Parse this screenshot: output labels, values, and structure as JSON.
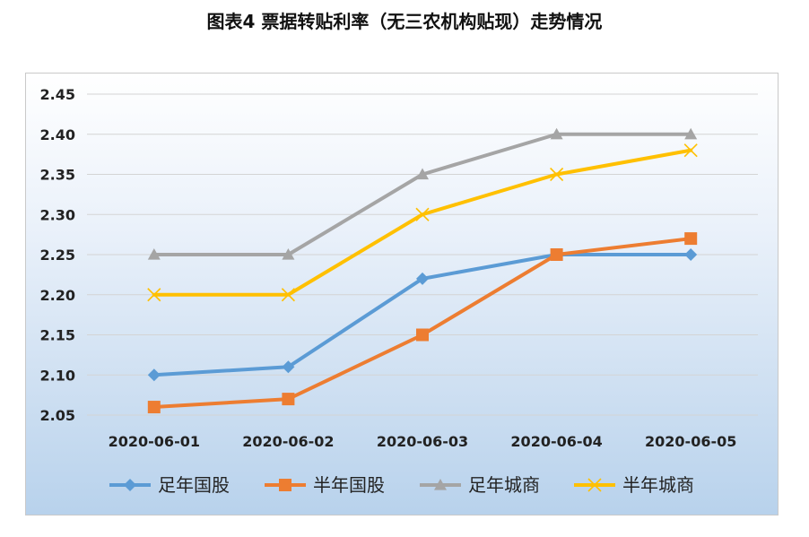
{
  "title": "图表4  票据转贴利率（无三农机构贴现）走势情况",
  "chart_data": {
    "type": "line",
    "title": "图表4  票据转贴利率（无三农机构贴现）走势情况",
    "categories": [
      "2020-06-01",
      "2020-06-02",
      "2020-06-03",
      "2020-06-04",
      "2020-06-05"
    ],
    "ylim": [
      2.05,
      2.45
    ],
    "yticks": [
      "2.05",
      "2.10",
      "2.15",
      "2.20",
      "2.25",
      "2.30",
      "2.35",
      "2.40",
      "2.45"
    ],
    "grid": true,
    "legend_position": "bottom",
    "series": [
      {
        "name": "足年国股",
        "values": [
          2.1,
          2.11,
          2.22,
          2.25,
          2.25
        ],
        "color": "#5b9bd5",
        "marker": "diamond"
      },
      {
        "name": "半年国股",
        "values": [
          2.06,
          2.07,
          2.15,
          2.25,
          2.27
        ],
        "color": "#ed7d31",
        "marker": "square"
      },
      {
        "name": "足年城商",
        "values": [
          2.25,
          2.25,
          2.35,
          2.4,
          2.4
        ],
        "color": "#a5a5a5",
        "marker": "triangle"
      },
      {
        "name": "半年城商",
        "values": [
          2.2,
          2.2,
          2.3,
          2.35,
          2.38
        ],
        "color": "#ffc000",
        "marker": "x"
      }
    ]
  }
}
